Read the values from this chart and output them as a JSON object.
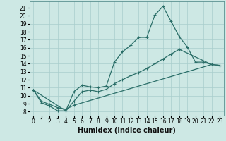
{
  "bg_color": "#cde8e4",
  "grid_color": "#a8cecc",
  "line_color": "#2a6e68",
  "markersize": 3,
  "linewidth": 0.9,
  "xlabel": "Humidex (Indice chaleur)",
  "xlabel_fontsize": 7,
  "tick_fontsize": 5.5,
  "xlim": [
    -0.5,
    23.5
  ],
  "ylim": [
    7.5,
    21.8
  ],
  "xticks": [
    0,
    1,
    2,
    3,
    4,
    5,
    6,
    7,
    8,
    9,
    10,
    11,
    12,
    13,
    14,
    15,
    16,
    17,
    18,
    19,
    20,
    21,
    22,
    23
  ],
  "yticks": [
    8,
    9,
    10,
    11,
    12,
    13,
    14,
    15,
    16,
    17,
    18,
    19,
    20,
    21
  ],
  "line1_x": [
    0,
    1,
    2,
    3,
    4,
    5,
    6,
    7,
    8,
    9,
    10,
    11,
    12,
    13,
    14,
    15,
    16,
    17,
    18,
    19,
    20,
    21,
    22
  ],
  "line1_y": [
    10.7,
    9.1,
    8.7,
    8.1,
    8.1,
    10.5,
    11.3,
    11.1,
    11.0,
    11.2,
    14.2,
    15.5,
    16.3,
    17.3,
    17.3,
    20.1,
    21.2,
    19.3,
    17.4,
    16.1,
    14.2,
    14.2,
    13.9
  ],
  "line2_x": [
    0,
    4,
    5,
    6,
    7,
    8,
    9,
    10,
    11,
    12,
    13,
    14,
    15,
    16,
    17,
    18,
    22,
    23
  ],
  "line2_y": [
    10.7,
    8.1,
    9.3,
    10.5,
    10.7,
    10.5,
    10.8,
    11.5,
    12.0,
    12.5,
    12.9,
    13.4,
    14.0,
    14.6,
    15.2,
    15.8,
    13.9,
    13.8
  ],
  "line3_x": [
    0,
    1,
    2,
    3,
    4,
    5,
    22,
    23
  ],
  "line3_y": [
    10.7,
    9.3,
    8.9,
    8.5,
    8.3,
    8.8,
    13.9,
    13.8
  ]
}
